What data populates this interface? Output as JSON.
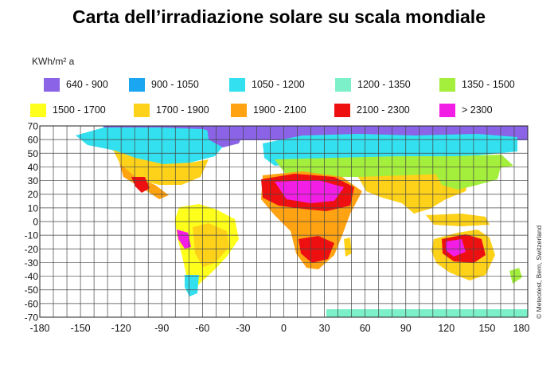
{
  "title": "Carta dell’irradiazione solare su scala mondiale",
  "unit_label": "KWh/m² a",
  "legend": [
    {
      "label": "640 - 900",
      "color": "#8a63e6"
    },
    {
      "label": "900 - 1050",
      "color": "#1aa6f0"
    },
    {
      "label": "1050 - 1200",
      "color": "#33e0ef"
    },
    {
      "label": "1200 - 1350",
      "color": "#7cf0c8"
    },
    {
      "label": "1350 - 1500",
      "color": "#a4ee3c"
    },
    {
      "label": "1500 - 1700",
      "color": "#ffff1c"
    },
    {
      "label": "1700 - 1900",
      "color": "#ffd21a"
    },
    {
      "label": "1900 - 2100",
      "color": "#ffa312"
    },
    {
      "label": "2100 - 2300",
      "color": "#ee1010"
    },
    {
      "label": "> 2300",
      "color": "#f21ee6"
    }
  ],
  "axes": {
    "lat_ticks": [
      "70",
      "60",
      "50",
      "40",
      "30",
      "20",
      "10",
      "0",
      "-10",
      "-20",
      "-30",
      "-40",
      "-50",
      "-60",
      "-70"
    ],
    "lon_ticks": [
      "-180",
      "-150",
      "-120",
      "-90",
      "-60",
      "-30",
      "0",
      "30",
      "60",
      "90",
      "120",
      "150",
      "180"
    ]
  },
  "credit": "© Meteotest, Bern, Switzerland"
}
